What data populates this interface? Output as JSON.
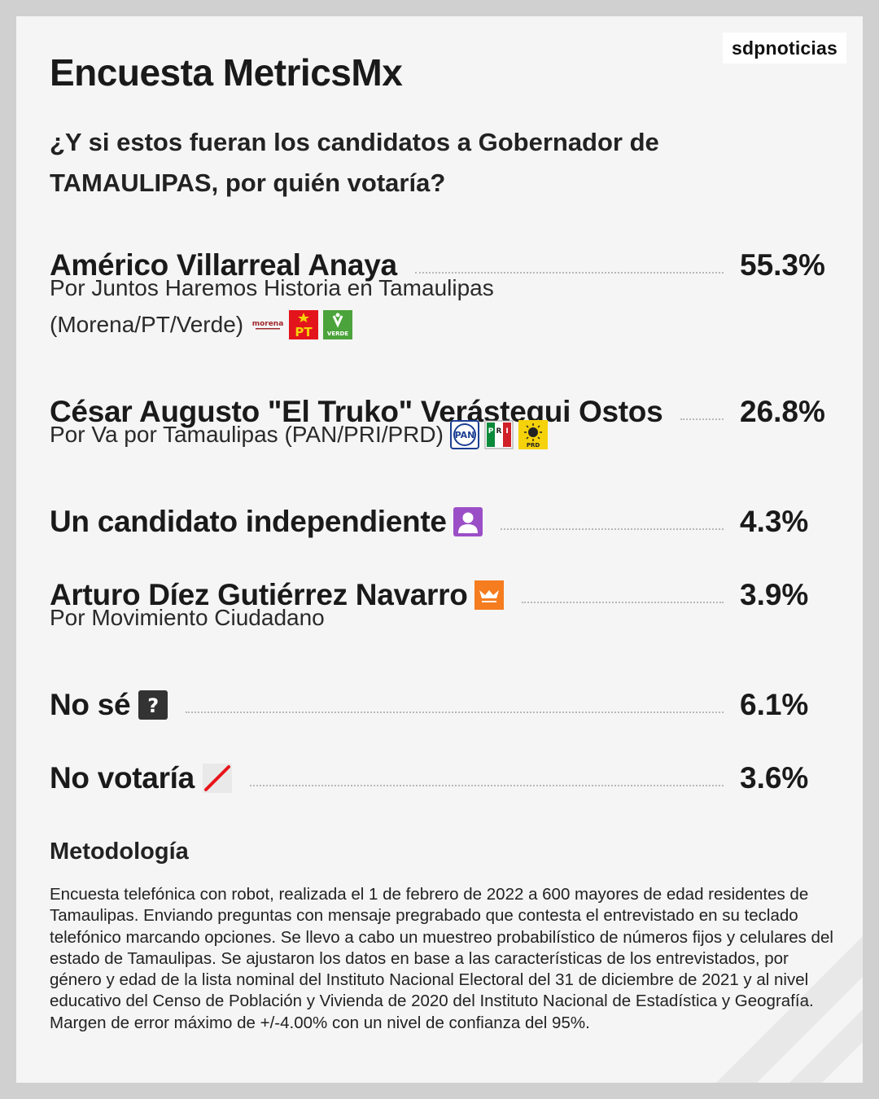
{
  "brand": "sdpnoticias",
  "title": "Encuesta MetricsMx",
  "question": "¿Y si estos fueran los candidatos a Gobernador de TAMAULIPAS, por quién votaría?",
  "candidates": [
    {
      "name": "Américo Villarreal Anaya",
      "percent": "55.3%",
      "sub_line1": "Por Juntos Haremos Historia en Tamaulipas",
      "sub_line2": "(Morena/PT/Verde)",
      "logos": [
        "morena-logo",
        "pt-logo",
        "verde-logo"
      ]
    },
    {
      "name": "César Augusto \"El Truko\" Verástegui Ostos",
      "percent": "26.8%",
      "sub_line1": "Por Va por Tamaulipas (PAN/PRI/PRD)",
      "logos": [
        "pan-logo",
        "pri-logo",
        "prd-logo"
      ]
    },
    {
      "name": "Un candidato independiente",
      "percent": "4.3%",
      "icon": "person-icon"
    },
    {
      "name": "Arturo Díez Gutiérrez Navarro",
      "percent": "3.9%",
      "sub_line1": "Por Movimiento Ciudadano",
      "icon": "movimiento-ciudadano-logo"
    },
    {
      "name": "No sé",
      "percent": "6.1%",
      "icon": "question-icon"
    },
    {
      "name": "No votaría",
      "percent": "3.6%",
      "icon": "no-vote-icon"
    }
  ],
  "logo_text": {
    "morena": "morena",
    "pt": "PT",
    "verde": "VERDE",
    "pan": "PAN",
    "prd": "PRD",
    "question": "?"
  },
  "methodology": {
    "title": "Metodología",
    "text": "Encuesta telefónica con robot, realizada el 1 de febrero de 2022 a 600 mayores de edad residentes de Tamaulipas. Enviando preguntas con mensaje pregrabado que contesta el entrevistado en su teclado telefónico marcando opciones. Se llevo a cabo un muestreo probabilístico de números fijos y celulares del estado de Tamaulipas. Se ajustaron los datos en base a las características de los entrevistados, por género y edad de la lista nominal del Instituto Nacional Electoral del 31 de diciembre de 2021 y al nivel educativo del Censo de Población y Vivienda de 2020 del Instituto Nacional de Estadística y Geografía. Margen de error máximo de +/-4.00% con un nivel de confianza del 95%."
  },
  "colors": {
    "background": "#f5f5f5",
    "frame": "#d0d0d0",
    "morena": "#a0282d",
    "pt": "#e3141b",
    "verde": "#4ba33b",
    "pan": "#1c3f93",
    "pri_green": "#0a8a3a",
    "pri_red": "#d0202a",
    "prd": "#f5d20a",
    "independiente": "#9b4fc7",
    "mc": "#f57c1f",
    "question": "#333333",
    "no_vote": "#e8141b"
  }
}
